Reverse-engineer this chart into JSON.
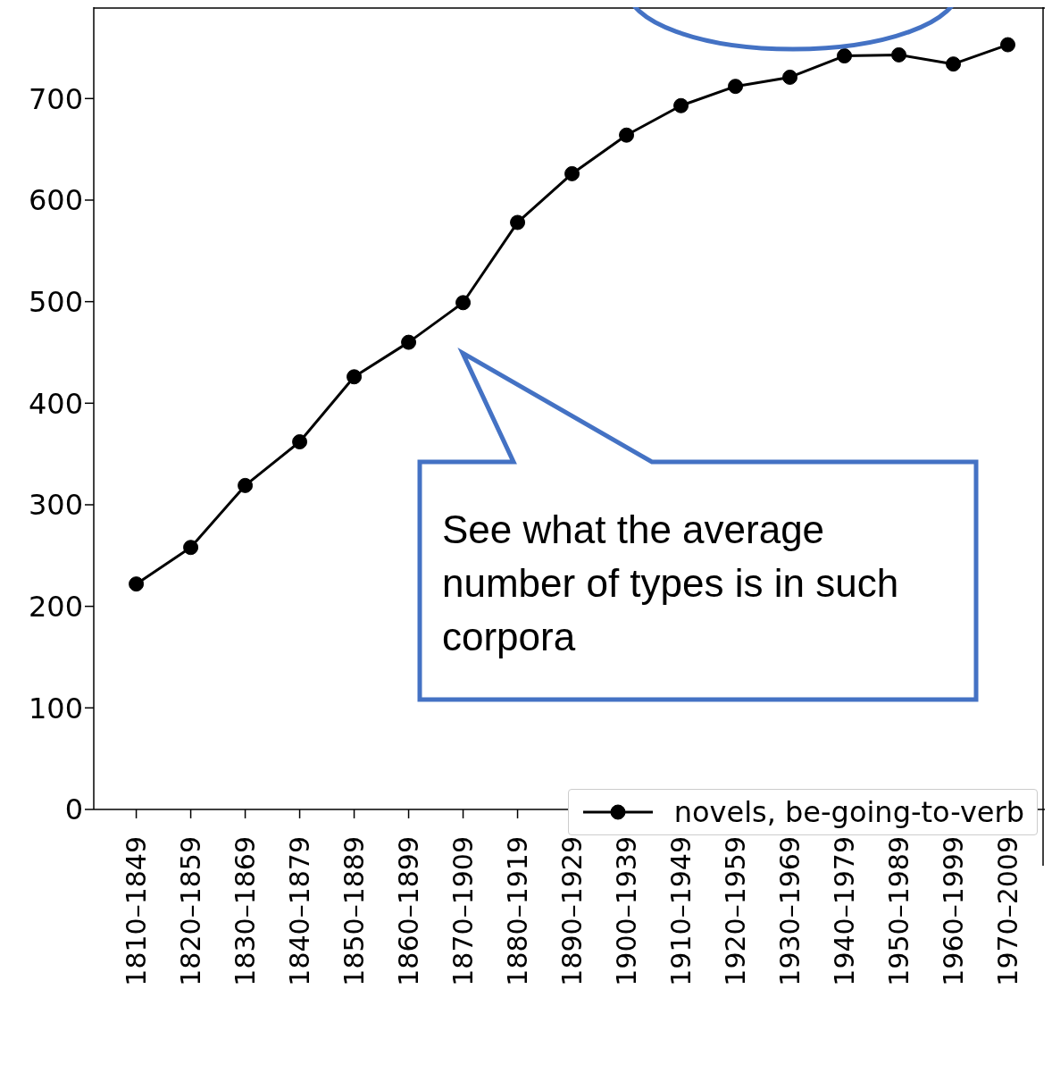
{
  "chart_data": {
    "type": "line",
    "categories": [
      "1810–1849",
      "1820–1859",
      "1830–1869",
      "1840–1879",
      "1850–1889",
      "1860–1899",
      "1870–1909",
      "1880–1919",
      "1890–1929",
      "1900–1939",
      "1910–1949",
      "1920–1959",
      "1930–1969",
      "1940–1979",
      "1950–1989",
      "1960–1999",
      "1970–2009"
    ],
    "series": [
      {
        "name": "novels, be-going-to-verb",
        "color": "#000000",
        "values": [
          222,
          258,
          319,
          362,
          426,
          460,
          499,
          578,
          626,
          664,
          693,
          712,
          721,
          742,
          743,
          734,
          753
        ]
      }
    ],
    "ylim": [
      0,
      790
    ],
    "yticks": [
      0,
      100,
      200,
      300,
      400,
      500,
      600,
      700
    ],
    "grid": false,
    "legend": "bottom right",
    "marker": "circle",
    "line_style": "solid",
    "annotations": [
      "See what the average number of types is in such corpora"
    ]
  }
}
